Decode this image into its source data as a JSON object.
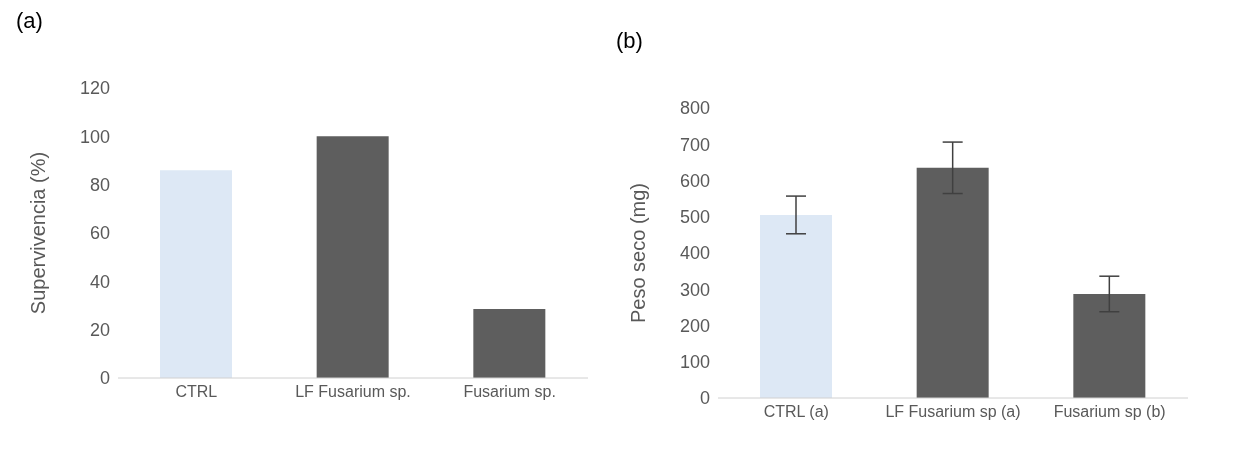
{
  "chart_data": [
    {
      "type": "bar",
      "title": "(a)",
      "ylabel": "Supervivencia (%)",
      "categories": [
        "CTRL",
        "LF Fusarium sp.",
        "Fusarium sp."
      ],
      "values": [
        86,
        100,
        28.6
      ],
      "colors": [
        "#dde8f5",
        "#5e5e5e",
        "#5e5e5e"
      ],
      "ylim": [
        0,
        120
      ],
      "yticks": [
        0,
        20,
        40,
        60,
        80,
        100,
        120
      ],
      "grid": false
    },
    {
      "type": "bar",
      "title": "(b)",
      "ylabel": "Peso seco (mg)",
      "categories": [
        "CTRL (a)",
        "LF Fusarium sp (a)",
        "Fusarium sp (b)"
      ],
      "values": [
        505,
        635,
        287
      ],
      "errors": [
        52,
        71,
        49
      ],
      "colors": [
        "#dde8f5",
        "#5e5e5e",
        "#5e5e5e"
      ],
      "ylim": [
        0,
        800
      ],
      "yticks": [
        0,
        100,
        200,
        300,
        400,
        500,
        600,
        700,
        800
      ],
      "grid": false
    }
  ]
}
